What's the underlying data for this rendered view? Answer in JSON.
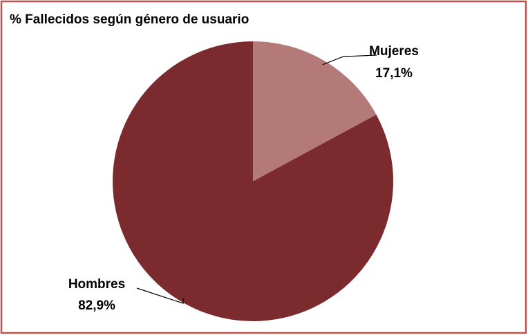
{
  "chart_data": {
    "type": "pie",
    "title": "% Fallecidos según género de usuario",
    "categories": [
      "Mujeres",
      "Hombres"
    ],
    "values": [
      17.1,
      82.9
    ],
    "value_labels": [
      "17,1%",
      "82,9%"
    ],
    "colors": [
      "#b47a78",
      "#7b2b2e"
    ]
  }
}
